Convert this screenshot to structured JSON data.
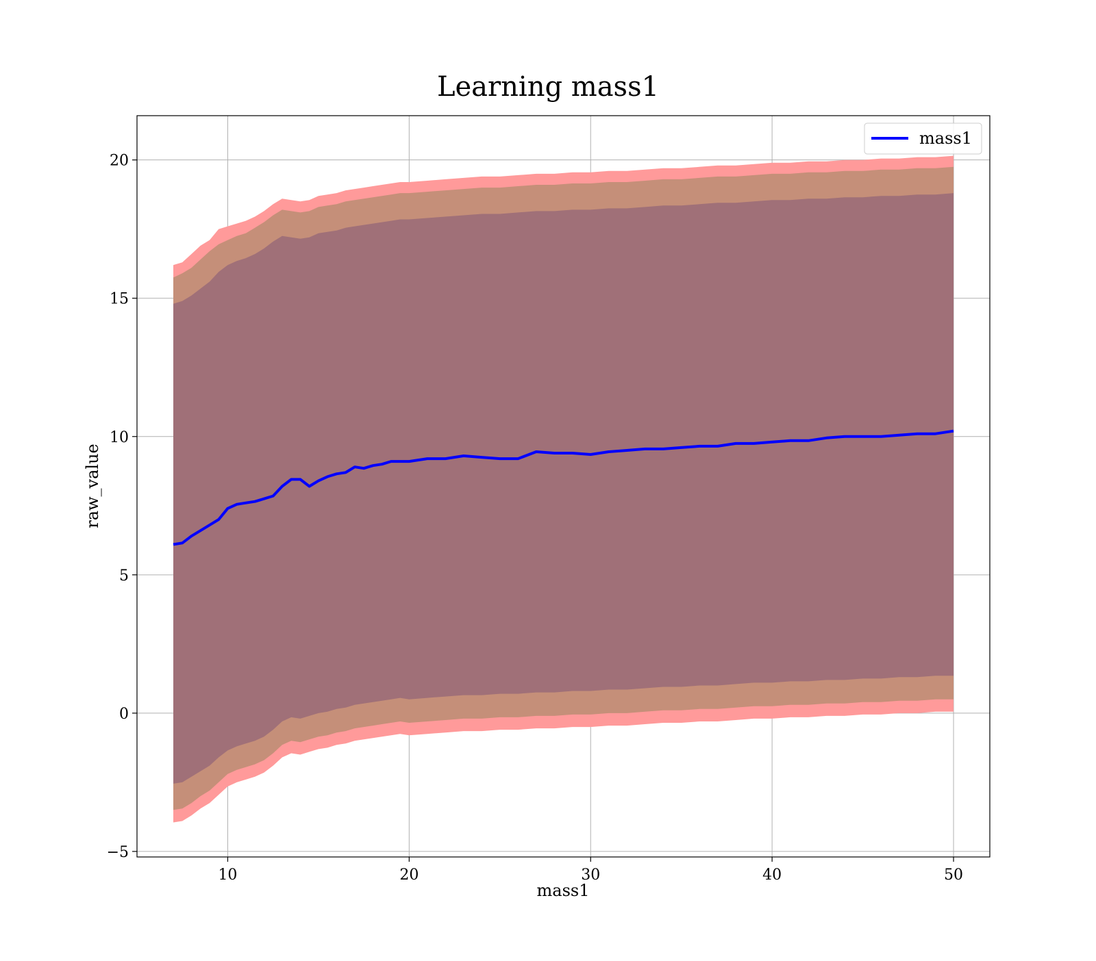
{
  "chart_data": {
    "type": "line",
    "title": "Learning mass1",
    "xlabel": "mass1",
    "ylabel": "raw_value",
    "xlim": [
      5,
      52
    ],
    "ylim": [
      -5.2,
      21.6
    ],
    "x_ticks": [
      10,
      20,
      30,
      40,
      50
    ],
    "x_tick_labels": [
      "10",
      "20",
      "30",
      "40",
      "50"
    ],
    "y_ticks": [
      -5,
      0,
      5,
      10,
      15,
      20
    ],
    "y_tick_labels": [
      "−5",
      "0",
      "5",
      "10",
      "15",
      "20"
    ],
    "grid": true,
    "legend": {
      "position": "top-right",
      "entries": [
        "mass1"
      ]
    },
    "colors": {
      "line": "#0000ff",
      "band_outer": "#ff9a9a",
      "band_middle": "#c58f79",
      "band_inner": "#a07078",
      "grid": "#b0b0b0"
    },
    "series": [
      {
        "name": "mass1",
        "x": [
          7,
          7.5,
          8,
          8.5,
          9,
          9.5,
          10,
          10.5,
          11,
          11.5,
          12,
          12.5,
          13,
          13.5,
          14,
          14.5,
          15,
          15.5,
          16,
          16.5,
          17,
          17.5,
          18,
          18.5,
          19,
          19.5,
          20,
          21,
          22,
          23,
          24,
          25,
          26,
          27,
          28,
          29,
          30,
          31,
          32,
          33,
          34,
          35,
          36,
          37,
          38,
          39,
          40,
          41,
          42,
          43,
          44,
          45,
          46,
          47,
          48,
          49,
          50
        ],
        "y": [
          6.1,
          6.15,
          6.4,
          6.6,
          6.8,
          7.0,
          7.4,
          7.55,
          7.6,
          7.65,
          7.75,
          7.85,
          8.2,
          8.45,
          8.45,
          8.2,
          8.4,
          8.55,
          8.65,
          8.7,
          8.9,
          8.85,
          8.95,
          9.0,
          9.1,
          9.1,
          9.1,
          9.2,
          9.2,
          9.3,
          9.25,
          9.2,
          9.2,
          9.45,
          9.4,
          9.4,
          9.35,
          9.45,
          9.5,
          9.55,
          9.55,
          9.6,
          9.65,
          9.65,
          9.75,
          9.75,
          9.8,
          9.85,
          9.85,
          9.95,
          10.0,
          10.0,
          10.0,
          10.05,
          10.1,
          10.1,
          10.2
        ],
        "upper_outer": [
          16.2,
          16.3,
          16.6,
          16.9,
          17.1,
          17.5,
          17.6,
          17.7,
          17.8,
          17.95,
          18.15,
          18.4,
          18.6,
          18.55,
          18.5,
          18.55,
          18.7,
          18.75,
          18.8,
          18.9,
          18.95,
          19.0,
          19.05,
          19.1,
          19.15,
          19.2,
          19.2,
          19.25,
          19.3,
          19.35,
          19.4,
          19.4,
          19.45,
          19.5,
          19.5,
          19.55,
          19.55,
          19.6,
          19.6,
          19.65,
          19.7,
          19.7,
          19.75,
          19.8,
          19.8,
          19.85,
          19.9,
          19.9,
          19.95,
          19.95,
          20.0,
          20.0,
          20.05,
          20.05,
          20.1,
          20.1,
          20.15
        ],
        "upper_middle": [
          15.75,
          15.9,
          16.1,
          16.4,
          16.7,
          16.95,
          17.1,
          17.25,
          17.35,
          17.55,
          17.75,
          18.0,
          18.2,
          18.15,
          18.1,
          18.15,
          18.3,
          18.35,
          18.4,
          18.5,
          18.55,
          18.6,
          18.65,
          18.7,
          18.75,
          18.8,
          18.8,
          18.85,
          18.9,
          18.95,
          19.0,
          19.0,
          19.05,
          19.1,
          19.1,
          19.15,
          19.15,
          19.2,
          19.2,
          19.25,
          19.3,
          19.3,
          19.35,
          19.4,
          19.4,
          19.45,
          19.5,
          19.5,
          19.55,
          19.55,
          19.6,
          19.6,
          19.65,
          19.65,
          19.7,
          19.7,
          19.75
        ],
        "upper_inner": [
          14.8,
          14.9,
          15.1,
          15.35,
          15.6,
          15.95,
          16.2,
          16.35,
          16.45,
          16.6,
          16.8,
          17.05,
          17.25,
          17.2,
          17.15,
          17.2,
          17.35,
          17.4,
          17.45,
          17.55,
          17.6,
          17.65,
          17.7,
          17.75,
          17.8,
          17.85,
          17.85,
          17.9,
          17.95,
          18.0,
          18.05,
          18.05,
          18.1,
          18.15,
          18.15,
          18.2,
          18.2,
          18.25,
          18.25,
          18.3,
          18.35,
          18.35,
          18.4,
          18.45,
          18.45,
          18.5,
          18.55,
          18.55,
          18.6,
          18.6,
          18.65,
          18.65,
          18.7,
          18.7,
          18.75,
          18.75,
          18.8
        ],
        "lower_inner": [
          -2.55,
          -2.5,
          -2.3,
          -2.1,
          -1.9,
          -1.6,
          -1.35,
          -1.2,
          -1.1,
          -1.0,
          -0.85,
          -0.6,
          -0.3,
          -0.15,
          -0.2,
          -0.1,
          0.0,
          0.05,
          0.15,
          0.2,
          0.3,
          0.35,
          0.4,
          0.45,
          0.5,
          0.55,
          0.5,
          0.55,
          0.6,
          0.65,
          0.65,
          0.7,
          0.7,
          0.75,
          0.75,
          0.8,
          0.8,
          0.85,
          0.85,
          0.9,
          0.95,
          0.95,
          1.0,
          1.0,
          1.05,
          1.1,
          1.1,
          1.15,
          1.15,
          1.2,
          1.2,
          1.25,
          1.25,
          1.3,
          1.3,
          1.35,
          1.35
        ],
        "lower_middle": [
          -3.5,
          -3.45,
          -3.25,
          -3.0,
          -2.8,
          -2.5,
          -2.2,
          -2.05,
          -1.95,
          -1.85,
          -1.7,
          -1.45,
          -1.15,
          -1.0,
          -1.05,
          -0.95,
          -0.85,
          -0.8,
          -0.7,
          -0.65,
          -0.55,
          -0.5,
          -0.45,
          -0.4,
          -0.35,
          -0.3,
          -0.35,
          -0.3,
          -0.25,
          -0.2,
          -0.2,
          -0.15,
          -0.15,
          -0.1,
          -0.1,
          -0.05,
          -0.05,
          0.0,
          0.0,
          0.05,
          0.1,
          0.1,
          0.15,
          0.15,
          0.2,
          0.25,
          0.25,
          0.3,
          0.3,
          0.35,
          0.35,
          0.4,
          0.4,
          0.45,
          0.45,
          0.5,
          0.5
        ],
        "lower_outer": [
          -3.95,
          -3.9,
          -3.7,
          -3.45,
          -3.25,
          -2.95,
          -2.65,
          -2.5,
          -2.4,
          -2.3,
          -2.15,
          -1.9,
          -1.6,
          -1.45,
          -1.5,
          -1.4,
          -1.3,
          -1.25,
          -1.15,
          -1.1,
          -1.0,
          -0.95,
          -0.9,
          -0.85,
          -0.8,
          -0.75,
          -0.8,
          -0.75,
          -0.7,
          -0.65,
          -0.65,
          -0.6,
          -0.6,
          -0.55,
          -0.55,
          -0.5,
          -0.5,
          -0.45,
          -0.45,
          -0.4,
          -0.35,
          -0.35,
          -0.3,
          -0.3,
          -0.25,
          -0.2,
          -0.2,
          -0.15,
          -0.15,
          -0.1,
          -0.1,
          -0.05,
          -0.05,
          0.0,
          0.0,
          0.05,
          0.05
        ]
      }
    ]
  }
}
